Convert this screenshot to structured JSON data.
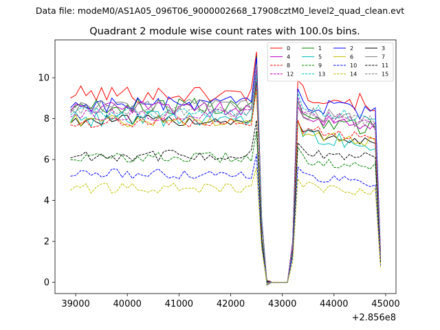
{
  "chart_data": {
    "type": "line",
    "suptitle": "Data file: modeM0/AS1A05_096T06_9000002668_17908cztM0_level2_quad_clean.evt",
    "title": "Quadrant 2 module wise count rates with 100.0s bins.",
    "xlabel": "",
    "ylabel": "",
    "offset_label": "+2.856e8",
    "xlim": [
      38600,
      45200
    ],
    "ylim": [
      -0.55,
      11.85
    ],
    "xticks": [
      39000,
      40000,
      41000,
      42000,
      43000,
      44000,
      45000
    ],
    "xtick_labels": [
      "39000",
      "40000",
      "41000",
      "42000",
      "43000",
      "44000",
      "45000"
    ],
    "yticks": [
      0,
      2,
      4,
      6,
      8,
      10
    ],
    "ytick_labels": [
      "0",
      "2",
      "4",
      "6",
      "8",
      "10"
    ],
    "x_start": 38900,
    "x_step": 100,
    "legend": {
      "location": "upper right",
      "columns": 4,
      "order": [
        0,
        4,
        8,
        12,
        1,
        5,
        9,
        13,
        2,
        6,
        10,
        14,
        3,
        7,
        11,
        15
      ]
    },
    "series": [
      {
        "name": "0",
        "color": "#ff0000",
        "dash": "solid",
        "base_a": 9.2,
        "base_b": 9.25,
        "noise": 0.42,
        "seed": 101
      },
      {
        "name": "1",
        "color": "#008000",
        "dash": "solid",
        "base_a": 8.6,
        "base_b": 8.0,
        "noise": 0.4,
        "seed": 102
      },
      {
        "name": "2",
        "color": "#0000ff",
        "dash": "solid",
        "base_a": 8.7,
        "base_b": 8.7,
        "noise": 0.38,
        "seed": 103
      },
      {
        "name": "3",
        "color": "#000000",
        "dash": "solid",
        "base_a": 7.9,
        "base_b": 7.3,
        "noise": 0.28,
        "seed": 104
      },
      {
        "name": "4",
        "color": "#bf00bf",
        "dash": "solid",
        "base_a": 8.5,
        "base_b": 8.1,
        "noise": 0.35,
        "seed": 105
      },
      {
        "name": "5",
        "color": "#00bfbf",
        "dash": "solid",
        "base_a": 8.0,
        "base_b": 7.2,
        "noise": 0.4,
        "seed": 106
      },
      {
        "name": "6",
        "color": "#bfbf00",
        "dash": "solid",
        "base_a": 7.9,
        "base_b": 7.3,
        "noise": 0.3,
        "seed": 107
      },
      {
        "name": "7",
        "color": "#808080",
        "dash": "solid",
        "base_a": 8.6,
        "base_b": 8.3,
        "noise": 0.35,
        "seed": 108
      },
      {
        "name": "8",
        "color": "#ff0000",
        "dash": "dashed",
        "base_a": 7.8,
        "base_b": 7.5,
        "noise": 0.25,
        "seed": 109
      },
      {
        "name": "9",
        "color": "#008000",
        "dash": "dashed",
        "base_a": 6.1,
        "base_b": 6.0,
        "noise": 0.25,
        "seed": 110
      },
      {
        "name": "10",
        "color": "#0000ff",
        "dash": "dashed",
        "base_a": 5.3,
        "base_b": 5.2,
        "noise": 0.25,
        "seed": 111
      },
      {
        "name": "11",
        "color": "#000000",
        "dash": "dashed",
        "base_a": 6.2,
        "base_b": 6.4,
        "noise": 0.28,
        "seed": 112
      },
      {
        "name": "12",
        "color": "#bf00bf",
        "dash": "dashed",
        "base_a": 8.2,
        "base_b": 8.2,
        "noise": 0.3,
        "seed": 113
      },
      {
        "name": "13",
        "color": "#00bfbf",
        "dash": "dashed",
        "base_a": 8.3,
        "base_b": 8.5,
        "noise": 0.3,
        "seed": 114
      },
      {
        "name": "14",
        "color": "#bfbf00",
        "dash": "dashed",
        "base_a": 4.6,
        "base_b": 4.7,
        "noise": 0.25,
        "seed": 115
      },
      {
        "name": "15",
        "color": "#808080",
        "dash": "dashed",
        "base_a": 8.4,
        "base_b": 8.3,
        "noise": 0.3,
        "seed": 116
      }
    ],
    "gap_profile": {
      "segment_a_end": 42400,
      "drop_points": [
        [
          42500,
          -1
        ],
        [
          42600,
          0.35
        ],
        [
          42700,
          0
        ]
      ],
      "zero_until": 43100,
      "rise_points": [
        [
          43200,
          0.22
        ],
        [
          43300,
          1.08
        ]
      ],
      "segment_b_start": 43400,
      "segment_b_end": 44800,
      "end_point": [
        44900,
        0.13
      ]
    }
  }
}
